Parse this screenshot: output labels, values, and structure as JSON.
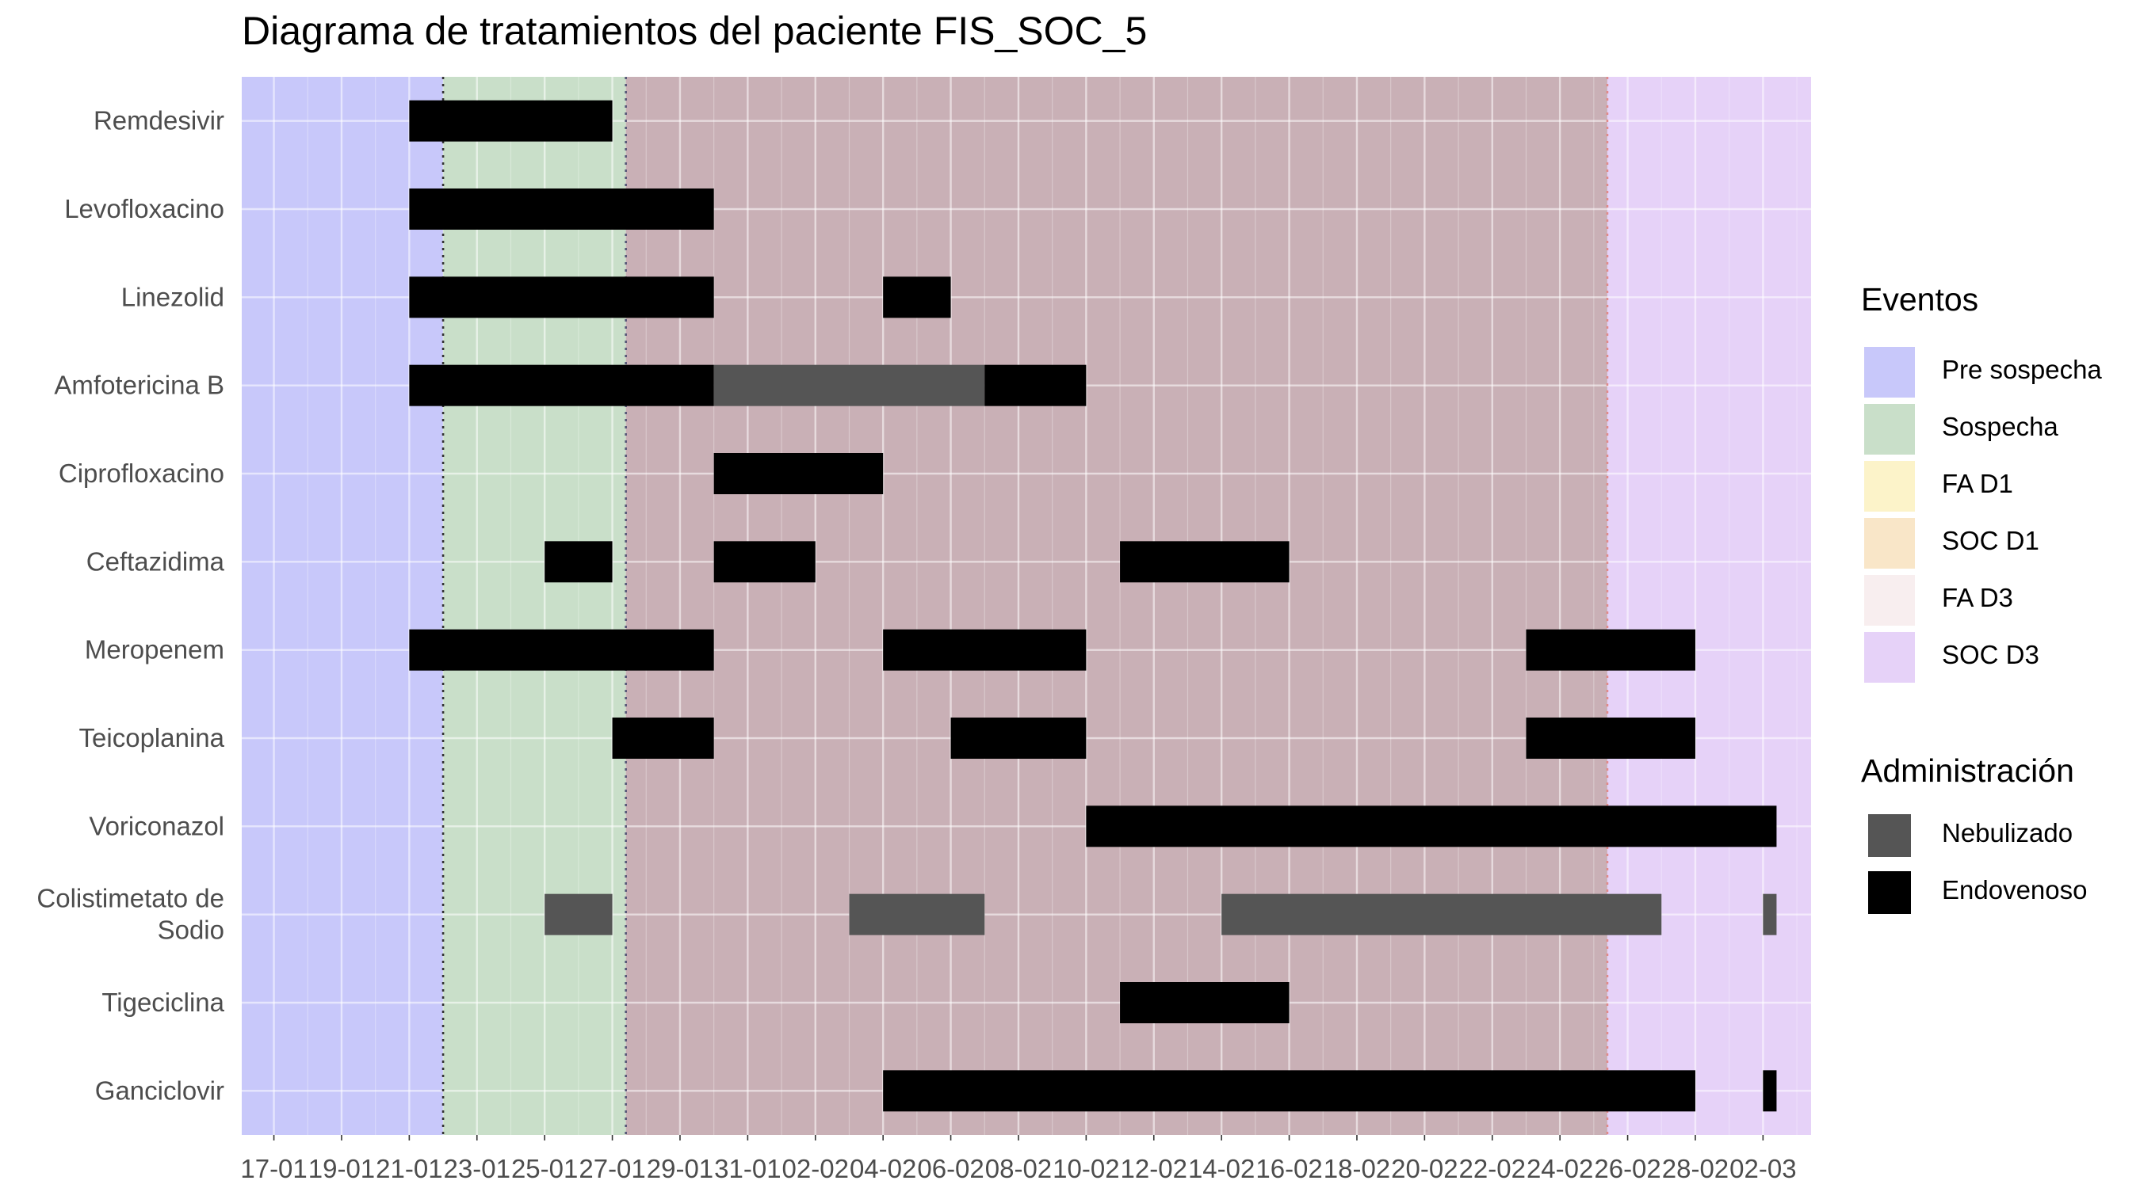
{
  "chart_data": {
    "type": "gantt",
    "title": "Diagrama de tratamientos del paciente FIS_SOC_5",
    "xlabel": "",
    "ylabel": "",
    "x_range": [
      "2022-01-17",
      "2022-03-04"
    ],
    "x_ticks": [
      "17-01",
      "19-01",
      "21-01",
      "23-01",
      "25-01",
      "27-01",
      "29-01",
      "31-01",
      "02-02",
      "04-02",
      "06-02",
      "08-02",
      "10-02",
      "12-02",
      "14-02",
      "16-02",
      "18-02",
      "20-02",
      "22-02",
      "24-02",
      "26-02",
      "28-02",
      "02-03"
    ],
    "treatments": [
      "Remdesivir",
      "Levofloxacino",
      "Linezolid",
      "Amfotericina B",
      "Ciprofloxacino",
      "Ceftazidima",
      "Meropenem",
      "Teicoplanina",
      "Voriconazol",
      "Colistimetato de Sodio",
      "Tigeciclina",
      "Ganciclovir"
    ],
    "phases": [
      {
        "name": "Pre sospecha",
        "start": "2022-01-16",
        "end": "2022-01-22",
        "color": "#c8c8fa"
      },
      {
        "name": "Sospecha",
        "start": "2022-01-22",
        "end": "2022-01-27.4",
        "color": "#c9dfc9"
      },
      {
        "name": "",
        "start": "2022-01-27.4",
        "end": "2022-02-25.4",
        "color": "#c9b0b6"
      },
      {
        "name": "SOC D3",
        "start": "2022-02-25.4",
        "end": "2022-03-04",
        "color": "#e6d2f8"
      }
    ],
    "phase_lines": [
      {
        "date": "2022-01-22",
        "color": "#333333"
      },
      {
        "date": "2022-01-27.4",
        "color": "#555577"
      },
      {
        "date": "2022-02-25.4",
        "color": "#e08a8a"
      }
    ],
    "legend_position": "right",
    "grid": true,
    "bars": [
      {
        "treatment": "Remdesivir",
        "start": "2022-01-21",
        "end": "2022-01-27",
        "route": "Endovenoso"
      },
      {
        "treatment": "Levofloxacino",
        "start": "2022-01-21",
        "end": "2022-01-30",
        "route": "Endovenoso"
      },
      {
        "treatment": "Linezolid",
        "start": "2022-01-21",
        "end": "2022-01-30",
        "route": "Endovenoso"
      },
      {
        "treatment": "Linezolid",
        "start": "2022-02-04",
        "end": "2022-02-06",
        "route": "Endovenoso"
      },
      {
        "treatment": "Amfotericina B",
        "start": "2022-01-21",
        "end": "2022-01-30",
        "route": "Endovenoso"
      },
      {
        "treatment": "Amfotericina B",
        "start": "2022-01-30",
        "end": "2022-02-07",
        "route": "Nebulizado"
      },
      {
        "treatment": "Amfotericina B",
        "start": "2022-02-07",
        "end": "2022-02-10",
        "route": "Endovenoso"
      },
      {
        "treatment": "Ciprofloxacino",
        "start": "2022-01-30",
        "end": "2022-02-04",
        "route": "Endovenoso"
      },
      {
        "treatment": "Ceftazidima",
        "start": "2022-01-25",
        "end": "2022-01-27",
        "route": "Endovenoso"
      },
      {
        "treatment": "Ceftazidima",
        "start": "2022-01-30",
        "end": "2022-02-02",
        "route": "Endovenoso"
      },
      {
        "treatment": "Ceftazidima",
        "start": "2022-02-11",
        "end": "2022-02-16",
        "route": "Endovenoso"
      },
      {
        "treatment": "Meropenem",
        "start": "2022-01-21",
        "end": "2022-01-30",
        "route": "Endovenoso"
      },
      {
        "treatment": "Meropenem",
        "start": "2022-02-04",
        "end": "2022-02-10",
        "route": "Endovenoso"
      },
      {
        "treatment": "Meropenem",
        "start": "2022-02-23",
        "end": "2022-02-28",
        "route": "Endovenoso"
      },
      {
        "treatment": "Teicoplanina",
        "start": "2022-01-27",
        "end": "2022-01-30",
        "route": "Endovenoso"
      },
      {
        "treatment": "Teicoplanina",
        "start": "2022-02-06",
        "end": "2022-02-10",
        "route": "Endovenoso"
      },
      {
        "treatment": "Teicoplanina",
        "start": "2022-02-23",
        "end": "2022-02-28",
        "route": "Endovenoso"
      },
      {
        "treatment": "Voriconazol",
        "start": "2022-02-10",
        "end": "2022-03-02.4",
        "route": "Endovenoso"
      },
      {
        "treatment": "Colistimetato de Sodio",
        "start": "2022-01-25",
        "end": "2022-01-27",
        "route": "Nebulizado"
      },
      {
        "treatment": "Colistimetato de Sodio",
        "start": "2022-02-03",
        "end": "2022-02-07",
        "route": "Nebulizado"
      },
      {
        "treatment": "Colistimetato de Sodio",
        "start": "2022-02-14",
        "end": "2022-02-27",
        "route": "Nebulizado"
      },
      {
        "treatment": "Colistimetato de Sodio",
        "start": "2022-03-02",
        "end": "2022-03-02.4",
        "route": "Nebulizado"
      },
      {
        "treatment": "Tigeciclina",
        "start": "2022-02-11",
        "end": "2022-02-16",
        "route": "Endovenoso"
      },
      {
        "treatment": "Ganciclovir",
        "start": "2022-02-04",
        "end": "2022-02-28",
        "route": "Endovenoso"
      },
      {
        "treatment": "Ganciclovir",
        "start": "2022-03-02",
        "end": "2022-03-02.4",
        "route": "Endovenoso"
      }
    ]
  },
  "legend_eventos": {
    "title": "Eventos",
    "items": [
      {
        "label": "Pre sospecha",
        "color": "#c8c8fa"
      },
      {
        "label": "Sospecha",
        "color": "#c9dfc9"
      },
      {
        "label": "FA D1",
        "color": "#fcf3c9"
      },
      {
        "label": "SOC D1",
        "color": "#f9e6c8"
      },
      {
        "label": "FA D3",
        "color": "#f8eeef"
      },
      {
        "label": "SOC D3",
        "color": "#e6d2f8"
      }
    ]
  },
  "legend_admin": {
    "title": "Administración",
    "items": [
      {
        "label": "Nebulizado",
        "color": "#555555"
      },
      {
        "label": "Endovenoso",
        "color": "#000000"
      }
    ]
  }
}
